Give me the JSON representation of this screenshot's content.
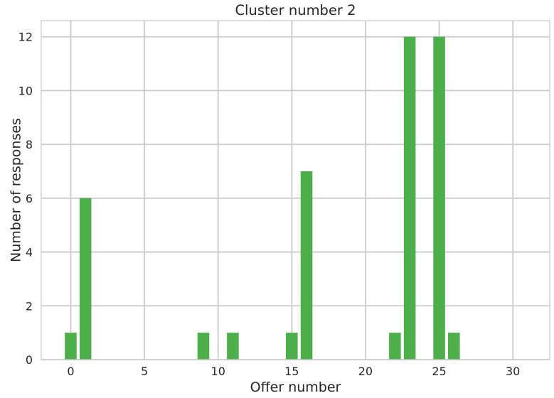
{
  "chart_data": {
    "type": "bar",
    "title": "Cluster number 2",
    "xlabel": "Offer number",
    "ylabel": "Number of responses",
    "x": [
      0,
      1,
      9,
      11,
      15,
      16,
      22,
      23,
      25,
      26
    ],
    "values": [
      1,
      6,
      1,
      1,
      1,
      7,
      1,
      12,
      12,
      1
    ],
    "bar_width": 0.8,
    "xlim": [
      -2,
      32.5
    ],
    "ylim": [
      0,
      12.6
    ],
    "xticks": [
      0,
      5,
      10,
      15,
      20,
      25,
      30
    ],
    "yticks": [
      0,
      2,
      4,
      6,
      8,
      10,
      12
    ],
    "grid": true,
    "colors": {
      "bar": "#4daf4a",
      "grid": "#cccccc",
      "text": "#262626"
    }
  }
}
